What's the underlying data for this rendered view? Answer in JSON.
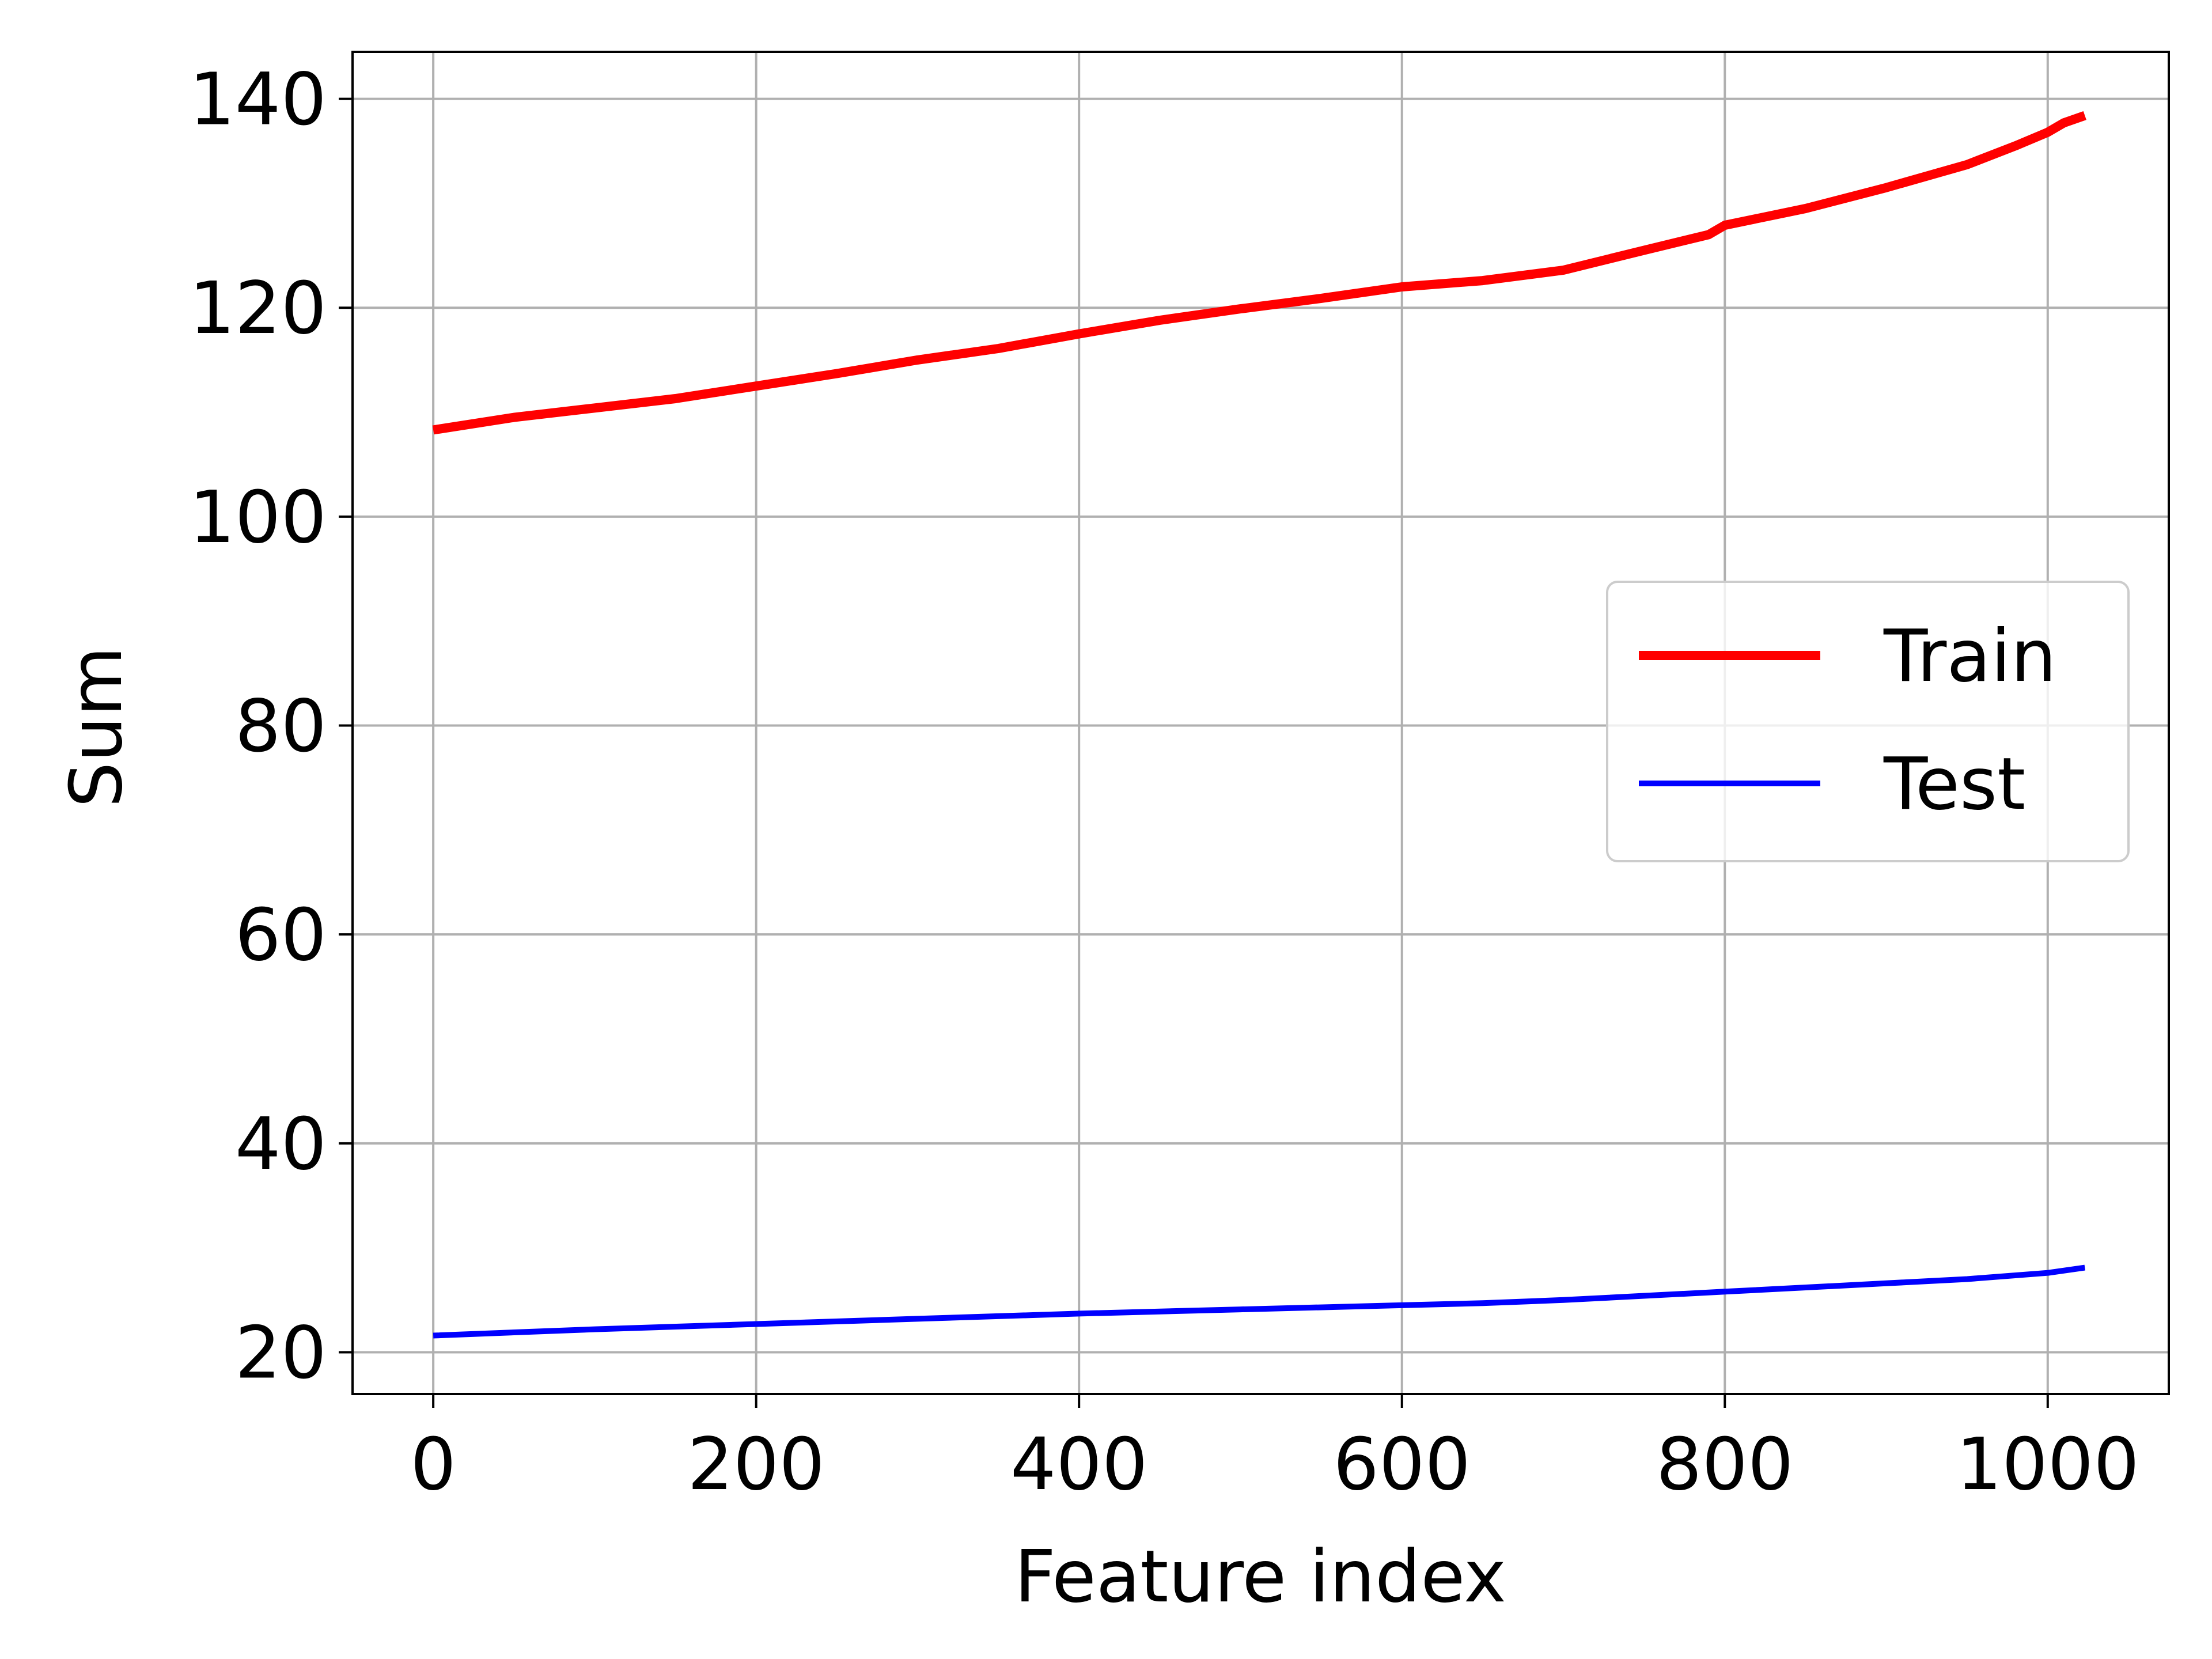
{
  "chart_data": {
    "type": "line",
    "title": "",
    "xlabel": "Feature index",
    "ylabel": "Sum",
    "xlim": [
      -50,
      1075
    ],
    "ylim": [
      16,
      144.5
    ],
    "xticks": [
      0,
      200,
      400,
      600,
      800,
      1000
    ],
    "yticks": [
      20,
      40,
      60,
      80,
      100,
      120,
      140
    ],
    "grid": true,
    "legend": {
      "position": "center-right"
    },
    "series": [
      {
        "name": "Train",
        "color": "#ff0000",
        "x": [
          0,
          50,
          100,
          150,
          200,
          250,
          300,
          350,
          400,
          450,
          500,
          550,
          600,
          650,
          700,
          750,
          790,
          800,
          850,
          900,
          950,
          980,
          1000,
          1010,
          1023
        ],
        "y": [
          108.3,
          109.5,
          110.4,
          111.3,
          112.5,
          113.7,
          115.0,
          116.1,
          117.5,
          118.8,
          119.9,
          120.9,
          122.0,
          122.6,
          123.6,
          125.5,
          127.0,
          127.9,
          129.5,
          131.5,
          133.7,
          135.5,
          136.8,
          137.7,
          138.4
        ]
      },
      {
        "name": "Test",
        "color": "#0000ff",
        "x": [
          0,
          100,
          200,
          300,
          400,
          500,
          600,
          650,
          700,
          800,
          900,
          950,
          1000,
          1023
        ],
        "y": [
          21.6,
          22.2,
          22.7,
          23.2,
          23.7,
          24.1,
          24.5,
          24.7,
          25.0,
          25.8,
          26.6,
          27.0,
          27.6,
          28.1
        ]
      }
    ]
  }
}
